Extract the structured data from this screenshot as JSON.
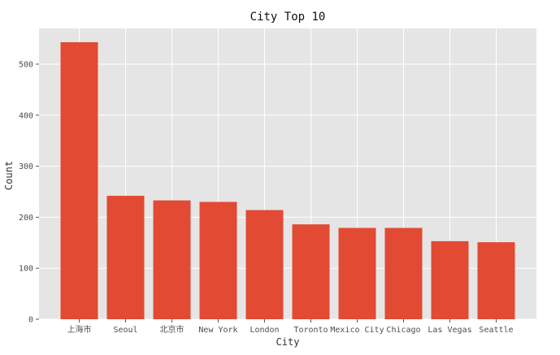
{
  "chart_data": {
    "type": "bar",
    "title": "City Top 10",
    "xlabel": "City",
    "ylabel": "Count",
    "categories": [
      "上海市",
      "Seoul",
      "北京市",
      "New York",
      "London",
      "Toronto",
      "Mexico City",
      "Chicago",
      "Las Vegas",
      "Seattle"
    ],
    "values": [
      543,
      242,
      233,
      230,
      214,
      186,
      179,
      179,
      153,
      151
    ],
    "ylim": [
      0,
      570
    ],
    "yticks": [
      0,
      100,
      200,
      300,
      400,
      500
    ],
    "grid": true,
    "style": "ggplot",
    "colors": {
      "bar": "#E24A33",
      "plot_background": "#E5E5E5",
      "grid": "#FFFFFF",
      "text": "#555555"
    }
  }
}
